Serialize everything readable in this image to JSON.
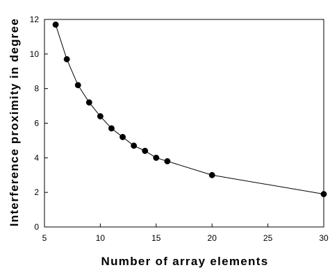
{
  "chart_data": {
    "type": "line",
    "title": "",
    "xlabel": "Number of array elements",
    "ylabel": "Interference proximity in degree",
    "xlim": [
      5,
      30
    ],
    "ylim": [
      0,
      12
    ],
    "xticks": [
      5,
      10,
      15,
      20,
      25,
      30
    ],
    "yticks": [
      0,
      2,
      4,
      6,
      8,
      10,
      12
    ],
    "grid": false,
    "markers": true,
    "line_color": "#000000",
    "marker_color": "#000000",
    "series": [
      {
        "x": [
          6,
          7,
          8,
          9,
          10,
          11,
          12,
          13,
          14,
          15,
          16,
          20,
          30
        ],
        "y": [
          11.7,
          9.7,
          8.2,
          7.2,
          6.4,
          5.7,
          5.2,
          4.7,
          4.4,
          4.0,
          3.8,
          3.0,
          1.9
        ]
      }
    ]
  }
}
